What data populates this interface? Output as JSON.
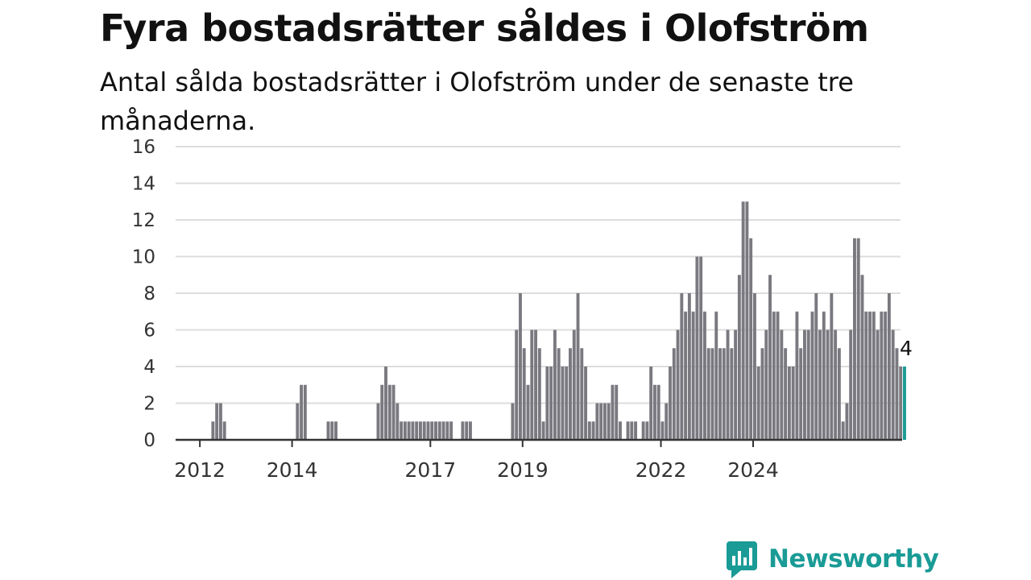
{
  "title": "Fyra bostadsrätter såldes i Olofström",
  "subtitle": "Antal sålda bostadsrätter i Olofström under de senaste tre månaderna.",
  "brand": {
    "name": "Newsworthy",
    "logo_icon": "bar-chart-speech-bubble-icon"
  },
  "colors": {
    "bar": "#7a7980",
    "highlight": "#1a9b96",
    "grid": "#dddddd",
    "axis": "#333333",
    "brand": "#1a9b96"
  },
  "chart_data": {
    "type": "bar",
    "title": "Fyra bostadsrätter såldes i Olofström",
    "subtitle": "Antal sålda bostadsrätter i Olofström under de senaste tre månaderna.",
    "xlabel": "",
    "ylabel": "",
    "ylim": [
      0,
      16
    ],
    "yticks": [
      0,
      2,
      4,
      6,
      8,
      10,
      12,
      14,
      16
    ],
    "xticks": [
      {
        "label": "2012",
        "x": 2012.0
      },
      {
        "label": "2014",
        "x": 2014.0
      },
      {
        "label": "2017",
        "x": 2017.0
      },
      {
        "label": "2019",
        "x": 2019.0
      },
      {
        "label": "2022",
        "x": 2022.0
      },
      {
        "label": "2024",
        "x": 2024.0
      }
    ],
    "grid": "horizontal",
    "start_month": "2011-07",
    "values": [
      0,
      0,
      0,
      0,
      0,
      0,
      0,
      0,
      0,
      1,
      2,
      2,
      1,
      0,
      0,
      0,
      0,
      0,
      0,
      0,
      0,
      0,
      0,
      0,
      0,
      0,
      0,
      0,
      0,
      0,
      0,
      2,
      3,
      3,
      0,
      0,
      0,
      0,
      0,
      1,
      1,
      1,
      0,
      0,
      0,
      0,
      0,
      0,
      0,
      0,
      0,
      0,
      2,
      3,
      4,
      3,
      3,
      2,
      1,
      1,
      1,
      1,
      1,
      1,
      1,
      1,
      1,
      1,
      1,
      1,
      1,
      1,
      0,
      0,
      1,
      1,
      1,
      0,
      0,
      0,
      0,
      0,
      0,
      0,
      0,
      0,
      0,
      2,
      6,
      8,
      5,
      3,
      6,
      6,
      5,
      1,
      4,
      4,
      6,
      5,
      4,
      4,
      5,
      6,
      8,
      5,
      4,
      1,
      1,
      2,
      2,
      2,
      2,
      3,
      3,
      1,
      0,
      1,
      1,
      1,
      0,
      1,
      1,
      4,
      3,
      3,
      1,
      2,
      4,
      5,
      6,
      8,
      7,
      8,
      7,
      10,
      10,
      7,
      5,
      5,
      7,
      5,
      5,
      6,
      5,
      6,
      9,
      13,
      13,
      11,
      8,
      4,
      5,
      6,
      9,
      7,
      7,
      6,
      5,
      4,
      4,
      7,
      5,
      6,
      6,
      7,
      8,
      6,
      7,
      6,
      8,
      6,
      5,
      1,
      2,
      6,
      11,
      11,
      9,
      7,
      7,
      7,
      6,
      7,
      7,
      8,
      6,
      5,
      4,
      4
    ],
    "highlight_last": true,
    "data_labels": [
      {
        "value": "4",
        "target": "last-bar"
      }
    ]
  }
}
